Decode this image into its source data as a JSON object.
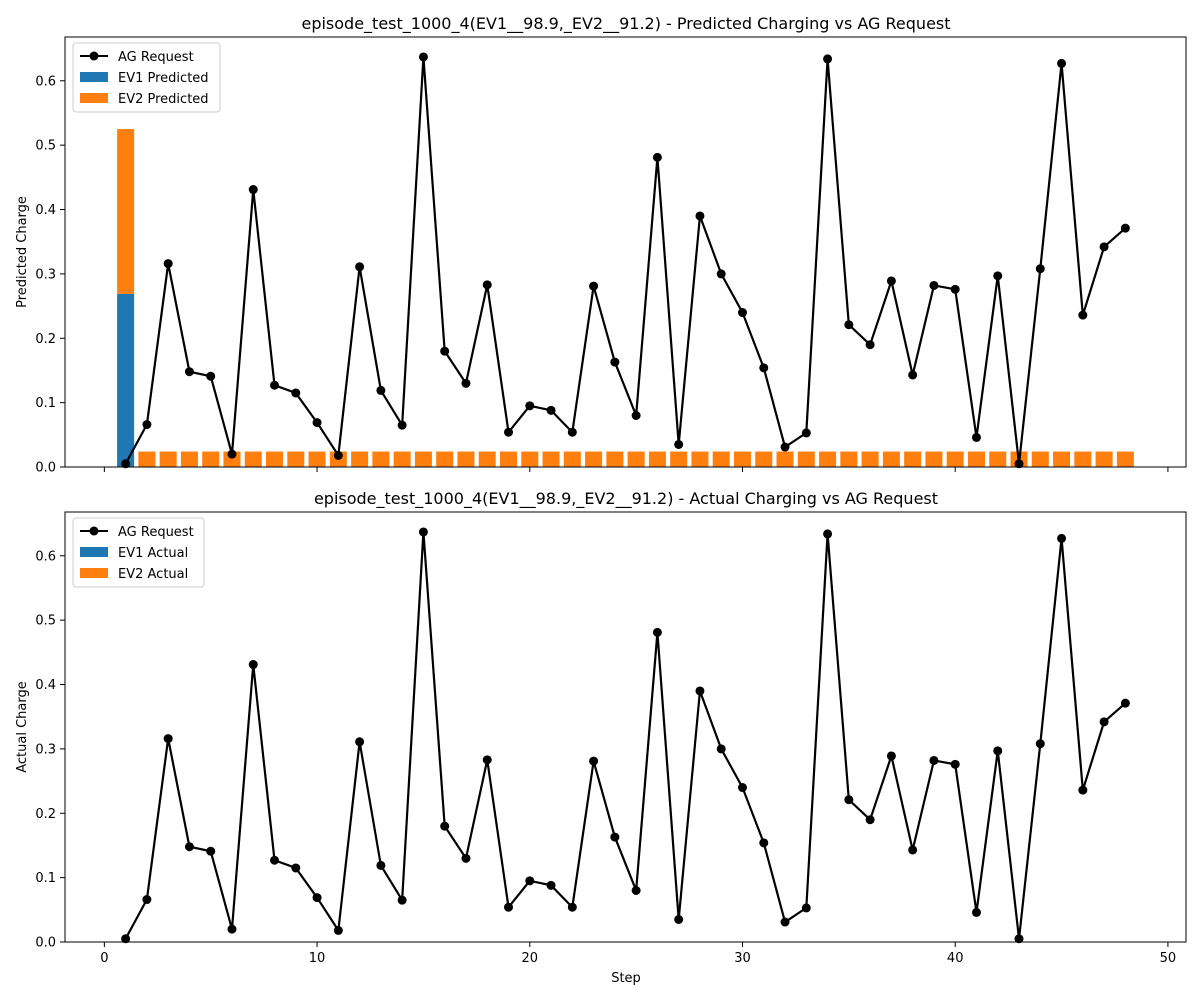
{
  "chart_data": [
    {
      "type": "bar",
      "title": "episode_test_1000_4(EV1__98.9,_EV2__91.2) - Predicted Charging vs AG Request",
      "xlabel": "",
      "ylabel": "Predicted Charge",
      "xlim": [
        -1.85,
        50.85
      ],
      "ylim": [
        0,
        0.668
      ],
      "x_ticks": [
        "0",
        "10",
        "20",
        "30",
        "40",
        "50"
      ],
      "y_ticks": [
        "0.0",
        "0.1",
        "0.2",
        "0.3",
        "0.4",
        "0.5",
        "0.6"
      ],
      "x_tick_labels_visible": false,
      "grid": false,
      "legend_location": "upper left",
      "legend": [
        "AG Request",
        "EV1 Predicted",
        "EV2 Predicted"
      ],
      "colors": {
        "ag_request": "#000000",
        "ev1": "#1f77b4",
        "ev2": "#ff7f0e"
      },
      "steps": [
        1,
        2,
        3,
        4,
        5,
        6,
        7,
        8,
        9,
        10,
        11,
        12,
        13,
        14,
        15,
        16,
        17,
        18,
        19,
        20,
        21,
        22,
        23,
        24,
        25,
        26,
        27,
        28,
        29,
        30,
        31,
        32,
        33,
        34,
        35,
        36,
        37,
        38,
        39,
        40,
        41,
        42,
        43,
        44,
        45,
        46,
        47,
        48
      ],
      "series": [
        {
          "name": "AG Request",
          "kind": "line",
          "values": [
            0.005,
            0.066,
            0.316,
            0.148,
            0.141,
            0.02,
            0.431,
            0.127,
            0.115,
            0.069,
            0.018,
            0.311,
            0.119,
            0.065,
            0.637,
            0.18,
            0.13,
            0.283,
            0.054,
            0.095,
            0.088,
            0.054,
            0.281,
            0.163,
            0.08,
            0.481,
            0.035,
            0.39,
            0.3,
            0.24,
            0.154,
            0.031,
            0.053,
            0.634,
            0.221,
            0.19,
            0.289,
            0.143,
            0.282,
            0.276,
            0.046,
            0.297,
            0.005,
            0.308,
            0.627,
            0.236,
            0.342,
            0.371
          ]
        },
        {
          "name": "EV1 Predicted",
          "kind": "bar",
          "values": [
            0.269,
            0,
            0,
            0,
            0,
            0,
            0,
            0,
            0,
            0,
            0,
            0,
            0,
            0,
            0,
            0,
            0,
            0,
            0,
            0,
            0,
            0,
            0,
            0,
            0,
            0,
            0,
            0,
            0,
            0,
            0,
            0,
            0,
            0,
            0,
            0,
            0,
            0,
            0,
            0,
            0,
            0,
            0,
            0,
            0,
            0,
            0,
            0
          ]
        },
        {
          "name": "EV2 Predicted",
          "kind": "bar",
          "stacked_on": "EV1 Predicted",
          "values": [
            0.256,
            0.024,
            0.024,
            0.024,
            0.024,
            0.024,
            0.024,
            0.024,
            0.024,
            0.024,
            0.024,
            0.024,
            0.024,
            0.024,
            0.024,
            0.024,
            0.024,
            0.024,
            0.024,
            0.024,
            0.024,
            0.024,
            0.024,
            0.024,
            0.024,
            0.024,
            0.024,
            0.024,
            0.024,
            0.024,
            0.024,
            0.024,
            0.024,
            0.024,
            0.024,
            0.024,
            0.024,
            0.024,
            0.024,
            0.024,
            0.024,
            0.024,
            0.024,
            0.024,
            0.024,
            0.024,
            0.024,
            0.024
          ]
        }
      ]
    },
    {
      "type": "bar",
      "title": "episode_test_1000_4(EV1__98.9,_EV2__91.2) - Actual Charging vs AG Request",
      "xlabel": "Step",
      "ylabel": "Actual Charge",
      "xlim": [
        -1.85,
        50.85
      ],
      "ylim": [
        0,
        0.668
      ],
      "x_ticks": [
        "0",
        "10",
        "20",
        "30",
        "40",
        "50"
      ],
      "y_ticks": [
        "0.0",
        "0.1",
        "0.2",
        "0.3",
        "0.4",
        "0.5",
        "0.6"
      ],
      "x_tick_labels_visible": true,
      "grid": false,
      "legend_location": "upper left",
      "legend": [
        "AG Request",
        "EV1 Actual",
        "EV2 Actual"
      ],
      "colors": {
        "ag_request": "#000000",
        "ev1": "#1f77b4",
        "ev2": "#ff7f0e"
      },
      "steps": [
        1,
        2,
        3,
        4,
        5,
        6,
        7,
        8,
        9,
        10,
        11,
        12,
        13,
        14,
        15,
        16,
        17,
        18,
        19,
        20,
        21,
        22,
        23,
        24,
        25,
        26,
        27,
        28,
        29,
        30,
        31,
        32,
        33,
        34,
        35,
        36,
        37,
        38,
        39,
        40,
        41,
        42,
        43,
        44,
        45,
        46,
        47,
        48
      ],
      "series": [
        {
          "name": "AG Request",
          "kind": "line",
          "values": [
            0.005,
            0.066,
            0.316,
            0.148,
            0.141,
            0.02,
            0.431,
            0.127,
            0.115,
            0.069,
            0.018,
            0.311,
            0.119,
            0.065,
            0.637,
            0.18,
            0.13,
            0.283,
            0.054,
            0.095,
            0.088,
            0.054,
            0.281,
            0.163,
            0.08,
            0.481,
            0.035,
            0.39,
            0.3,
            0.24,
            0.154,
            0.031,
            0.053,
            0.634,
            0.221,
            0.19,
            0.289,
            0.143,
            0.282,
            0.276,
            0.046,
            0.297,
            0.005,
            0.308,
            0.627,
            0.236,
            0.342,
            0.371
          ]
        },
        {
          "name": "EV1 Actual",
          "kind": "bar",
          "values": [
            0,
            0,
            0,
            0,
            0,
            0,
            0,
            0,
            0,
            0,
            0,
            0,
            0,
            0,
            0,
            0,
            0,
            0,
            0,
            0,
            0,
            0,
            0,
            0,
            0,
            0,
            0,
            0,
            0,
            0,
            0,
            0,
            0,
            0,
            0,
            0,
            0,
            0,
            0,
            0,
            0,
            0,
            0,
            0,
            0,
            0,
            0,
            0
          ]
        },
        {
          "name": "EV2 Actual",
          "kind": "bar",
          "stacked_on": "EV1 Actual",
          "values": [
            0,
            0,
            0,
            0,
            0,
            0,
            0,
            0,
            0,
            0,
            0,
            0,
            0,
            0,
            0,
            0,
            0,
            0,
            0,
            0,
            0,
            0,
            0,
            0,
            0,
            0,
            0,
            0,
            0,
            0,
            0,
            0,
            0,
            0,
            0,
            0,
            0,
            0,
            0,
            0,
            0,
            0,
            0,
            0,
            0,
            0,
            0,
            0
          ]
        }
      ]
    }
  ]
}
